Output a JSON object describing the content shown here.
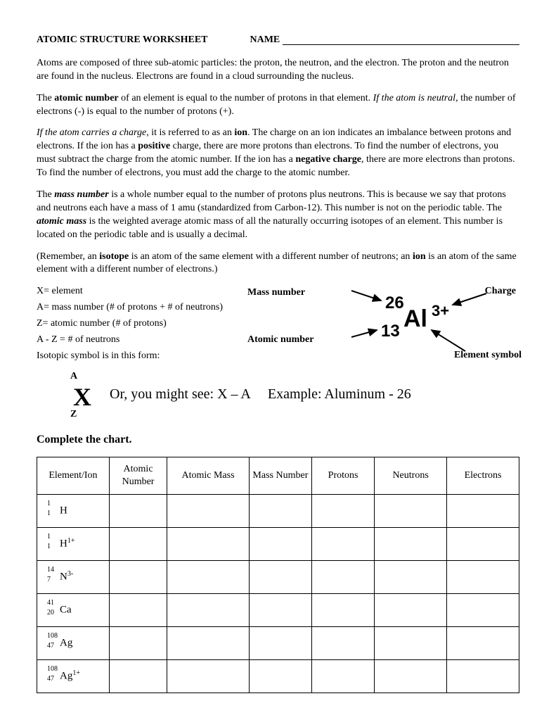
{
  "header": {
    "title": "ATOMIC STRUCTURE WORKSHEET",
    "name_label": "NAME"
  },
  "paragraphs": {
    "p1": "Atoms are composed of three sub-atomic particles:  the proton, the neutron, and the electron.  The proton and the neutron are found in the nucleus.  Electrons are found in a cloud surrounding the nucleus.",
    "p2a": "The ",
    "p2b": "atomic number",
    "p2c": " of an element is equal to the number of protons in that element.  ",
    "p2d": "If the atom is neutral",
    "p2e": ", the number of electrons (-) is equal to the number of protons (+).",
    "p3a": "If the atom carries a charge",
    "p3b": ", it is referred to as an ",
    "p3c": "ion",
    "p3d": ".  The charge on an ion indicates an imbalance between protons and electrons.  If the ion has a ",
    "p3e": "positive",
    "p3f": " charge, there are more protons than electrons. To find the number of electrons, you must subtract the charge from the atomic number.  If the ion has a ",
    "p3g": "negative charge",
    "p3h": ", there are more electrons than protons. To find the number of electrons, you must add the charge to the atomic number.",
    "p4a": "The ",
    "p4b": "mass number",
    "p4c": " is a whole number equal to the number of protons plus neutrons. This is because we say that protons and neutrons each have a mass of 1 amu (standardized from Carbon-12). This number is not on the periodic table. The ",
    "p4d": "atomic mass",
    "p4e": " is the weighted average atomic mass of all the naturally occurring isotopes of an element. This number is located on the periodic table and is usually a decimal.",
    "p5a": "(Remember, an ",
    "p5b": "isotope",
    "p5c": " is an atom of the same element with a different number of neutrons; an ",
    "p5d": "ion",
    "p5e": " is an atom of the same element with a different number of electrons.)"
  },
  "definitions": {
    "d1": "X= element",
    "d2": "A= mass number (# of protons + # of neutrons)",
    "d3": "Z= atomic number (# of protons)",
    "d4": "A - Z = # of neutrons",
    "d5": "Isotopic symbol is in this form:"
  },
  "diagram": {
    "mass_number_label": "Mass number",
    "charge_label": "Charge",
    "atomic_number_label": "Atomic number",
    "element_symbol_label": "Element symbol",
    "mass_value": "26",
    "atomic_value": "13",
    "element": "Al",
    "charge_value": "3+"
  },
  "isotope_form": {
    "A": "A",
    "X": "X",
    "Z": "Z",
    "or_text": "Or, you might see: X – A",
    "example_text": "Example: Aluminum - 26"
  },
  "section_title": "Complete the chart.",
  "table": {
    "columns": [
      "Element/Ion",
      "Atomic Number",
      "Atomic Mass",
      "Mass Number",
      "Protons",
      "Neutrons",
      "Electrons"
    ],
    "rows": [
      {
        "mass": "1",
        "atomic": "1",
        "sym": "H",
        "charge": ""
      },
      {
        "mass": "1",
        "atomic": "1",
        "sym": "H",
        "charge": "1+"
      },
      {
        "mass": "14",
        "atomic": "7",
        "sym": "N",
        "charge": "3-"
      },
      {
        "mass": "41",
        "atomic": "20",
        "sym": "Ca",
        "charge": ""
      },
      {
        "mass": "108",
        "atomic": "47",
        "sym": "Ag",
        "charge": ""
      },
      {
        "mass": "108",
        "atomic": "47",
        "sym": "Ag",
        "charge": "1+"
      }
    ]
  }
}
